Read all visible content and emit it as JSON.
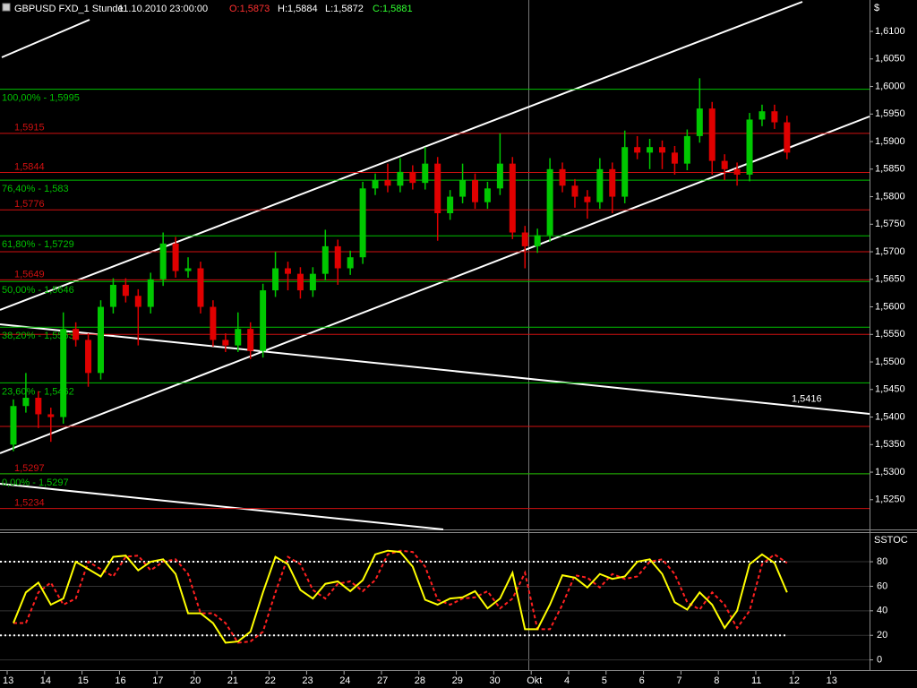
{
  "header": {
    "symbol": "GBPUSD FXD_1 Stunde",
    "datetime": "11.10.2010 23:00:00",
    "open": "O:1,5873",
    "high": "H:1,5884",
    "low": "L:1,5872",
    "close": "C:1,5881"
  },
  "chart_data": [
    {
      "type": "candlestick",
      "currency": "$",
      "categories": [
        "13",
        "14",
        "15",
        "16",
        "17",
        "20",
        "21",
        "22",
        "23",
        "24",
        "27",
        "28",
        "29",
        "30",
        "Okt",
        "4",
        "5",
        "6",
        "7",
        "8",
        "11",
        "12",
        "13"
      ],
      "open": [
        1.535,
        1.542,
        1.5435,
        1.5405,
        1.54,
        1.556,
        1.554,
        1.548,
        1.56,
        1.564,
        1.562,
        1.56,
        1.565,
        1.5715,
        1.5665,
        1.567,
        1.56,
        1.554,
        1.553,
        1.556,
        1.552,
        1.563,
        1.567,
        1.566,
        1.563,
        1.566,
        1.571,
        1.567,
        1.569,
        1.5815,
        1.583,
        1.582,
        1.5845,
        1.5825,
        1.586,
        1.577,
        1.58,
        1.583,
        1.579,
        1.5815,
        1.586,
        1.5735,
        1.571,
        1.573,
        1.585,
        1.582,
        1.58,
        1.579,
        1.585,
        1.58,
        1.589,
        1.588,
        1.589,
        1.588,
        1.586,
        1.591,
        1.596,
        1.5865,
        1.585,
        1.584,
        1.594,
        1.5955,
        1.5935
      ],
      "high": [
        1.5432,
        1.548,
        1.5447,
        1.5417,
        1.559,
        1.5572,
        1.5552,
        1.5612,
        1.5652,
        1.5652,
        1.5632,
        1.5662,
        1.5735,
        1.5727,
        1.569,
        1.5682,
        1.5612,
        1.5552,
        1.559,
        1.5572,
        1.5642,
        1.57,
        1.5682,
        1.5672,
        1.5672,
        1.574,
        1.5722,
        1.5702,
        1.5827,
        1.5842,
        1.586,
        1.587,
        1.5857,
        1.589,
        1.5872,
        1.5812,
        1.586,
        1.5842,
        1.5827,
        1.5915,
        1.5872,
        1.5747,
        1.5742,
        1.587,
        1.5862,
        1.5832,
        1.5812,
        1.587,
        1.5862,
        1.592,
        1.591,
        1.5905,
        1.5902,
        1.5892,
        1.5922,
        1.6015,
        1.5972,
        1.5877,
        1.5862,
        1.5952,
        1.5967,
        1.5967,
        1.5947
      ],
      "low": [
        1.5338,
        1.5408,
        1.538,
        1.5355,
        1.5388,
        1.5528,
        1.5455,
        1.5468,
        1.5588,
        1.5608,
        1.553,
        1.5588,
        1.5638,
        1.5653,
        1.5653,
        1.5588,
        1.5528,
        1.5518,
        1.5518,
        1.5505,
        1.5508,
        1.5618,
        1.563,
        1.5615,
        1.5618,
        1.5648,
        1.564,
        1.5658,
        1.5678,
        1.5803,
        1.5808,
        1.5808,
        1.5813,
        1.5813,
        1.572,
        1.5758,
        1.5788,
        1.5778,
        1.5778,
        1.5803,
        1.5723,
        1.567,
        1.5698,
        1.5718,
        1.5808,
        1.578,
        1.576,
        1.5778,
        1.577,
        1.5788,
        1.5868,
        1.585,
        1.585,
        1.584,
        1.5848,
        1.5898,
        1.584,
        1.583,
        1.582,
        1.5828,
        1.5928,
        1.5923,
        1.5868
      ],
      "close": [
        1.542,
        1.5435,
        1.5405,
        1.54,
        1.556,
        1.554,
        1.548,
        1.56,
        1.564,
        1.562,
        1.56,
        1.565,
        1.5715,
        1.5665,
        1.567,
        1.56,
        1.554,
        1.553,
        1.556,
        1.552,
        1.563,
        1.567,
        1.566,
        1.563,
        1.566,
        1.571,
        1.567,
        1.569,
        1.5815,
        1.583,
        1.582,
        1.5845,
        1.5825,
        1.586,
        1.577,
        1.58,
        1.583,
        1.579,
        1.5815,
        1.586,
        1.5735,
        1.571,
        1.573,
        1.585,
        1.582,
        1.58,
        1.579,
        1.585,
        1.58,
        1.589,
        1.588,
        1.589,
        1.588,
        1.586,
        1.591,
        1.596,
        1.5865,
        1.585,
        1.584,
        1.594,
        1.5955,
        1.5935,
        1.588
      ],
      "up_color": "#00c800",
      "down_color": "#e00000",
      "ylim": [
        1.5196,
        1.6157
      ],
      "yticks": [
        {
          "value": 1.61,
          "label": "1,6100"
        },
        {
          "value": 1.605,
          "label": "1,6050"
        },
        {
          "value": 1.6,
          "label": "1,6000"
        },
        {
          "value": 1.595,
          "label": "1,5950"
        },
        {
          "value": 1.59,
          "label": "1,5900"
        },
        {
          "value": 1.585,
          "label": "1,5850"
        },
        {
          "value": 1.58,
          "label": "1,5800"
        },
        {
          "value": 1.575,
          "label": "1,5750"
        },
        {
          "value": 1.57,
          "label": "1,5700"
        },
        {
          "value": 1.565,
          "label": "1,5650"
        },
        {
          "value": 1.56,
          "label": "1,5600"
        },
        {
          "value": 1.555,
          "label": "1,5550"
        },
        {
          "value": 1.55,
          "label": "1,5500"
        },
        {
          "value": 1.545,
          "label": "1,5450"
        },
        {
          "value": 1.54,
          "label": "1,5400"
        },
        {
          "value": 1.535,
          "label": "1,5350"
        },
        {
          "value": 1.53,
          "label": "1,5300"
        },
        {
          "value": 1.525,
          "label": "1,5250"
        }
      ],
      "fib_levels": [
        {
          "value": 1.5995,
          "label": "100,00% - 1,5995"
        },
        {
          "value": 1.583,
          "label": "76,40% - 1,583"
        },
        {
          "value": 1.5729,
          "label": "61,80% - 1,5729"
        },
        {
          "value": 1.5646,
          "label": "50,00% - 1,5646"
        },
        {
          "value": 1.5563,
          "label": "38,20% - 1,5563"
        },
        {
          "value": 1.5462,
          "label": "23,60% - 1,5462"
        },
        {
          "value": 1.5297,
          "label": "0,00% - 1,5297"
        }
      ],
      "fib_color": "#00c000",
      "price_levels": [
        {
          "value": 1.5915,
          "label": "1,5915"
        },
        {
          "value": 1.5844,
          "label": "1,5844"
        },
        {
          "value": 1.5776,
          "label": "1,5776"
        },
        {
          "value": 1.57
        },
        {
          "value": 1.5649,
          "label": "1,5649"
        },
        {
          "value": 1.555
        },
        {
          "value": 1.5383
        },
        {
          "value": 1.5297,
          "label": "1,5297"
        },
        {
          "value": 1.5234,
          "label": "1,5234"
        }
      ],
      "level_color": "#d01010",
      "annotation": {
        "value": 1.5416,
        "label": "1,5416"
      }
    },
    {
      "type": "line",
      "title": "SSTOC",
      "series": [
        {
          "color": "#ffff00",
          "values": [
            30,
            55,
            63,
            45,
            50,
            80,
            74,
            68,
            84,
            85,
            73,
            80,
            82,
            70,
            38,
            38,
            30,
            14,
            15,
            23,
            55,
            84,
            78,
            57,
            50,
            62,
            64,
            56,
            65,
            86,
            89,
            88,
            76,
            49,
            45,
            50,
            51,
            56,
            42,
            50,
            71,
            25,
            25,
            45,
            69,
            67,
            59,
            70,
            66,
            68,
            80,
            82,
            70,
            47,
            41,
            55,
            45,
            26,
            40,
            78,
            86,
            79,
            55
          ]
        },
        {
          "color": "#ff2020",
          "dashed": true,
          "values": [
            30,
            30,
            55,
            63,
            45,
            50,
            80,
            74,
            68,
            84,
            85,
            73,
            80,
            82,
            70,
            38,
            38,
            30,
            14,
            15,
            23,
            55,
            84,
            78,
            57,
            50,
            62,
            64,
            56,
            65,
            86,
            89,
            88,
            76,
            49,
            45,
            50,
            51,
            56,
            42,
            50,
            71,
            25,
            25,
            45,
            69,
            67,
            59,
            70,
            66,
            68,
            80,
            82,
            70,
            47,
            41,
            55,
            45,
            26,
            40,
            78,
            86,
            79
          ]
        }
      ],
      "ylim": [
        -8.3,
        103.4
      ],
      "yticks": [
        80,
        60,
        40,
        20,
        0
      ],
      "levels": [
        80,
        20
      ]
    }
  ]
}
